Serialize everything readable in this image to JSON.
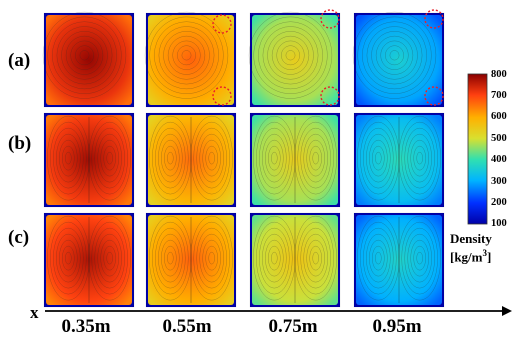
{
  "rows": [
    {
      "label": "(a)",
      "panels": [
        {
          "density": 720,
          "pattern": "single-vortex"
        },
        {
          "density": 600,
          "pattern": "single-vortex"
        },
        {
          "density": 470,
          "pattern": "single-vortex"
        },
        {
          "density": 290,
          "pattern": "single-vortex"
        }
      ]
    },
    {
      "label": "(b)",
      "panels": [
        {
          "density": 710,
          "pattern": "twin-vortex"
        },
        {
          "density": 590,
          "pattern": "twin-vortex"
        },
        {
          "density": 470,
          "pattern": "twin-vortex"
        },
        {
          "density": 320,
          "pattern": "twin-vortex"
        }
      ]
    },
    {
      "label": "(c)",
      "panels": [
        {
          "density": 700,
          "pattern": "twin-vortex"
        },
        {
          "density": 600,
          "pattern": "twin-vortex"
        },
        {
          "density": 490,
          "pattern": "twin-vortex"
        },
        {
          "density": 300,
          "pattern": "twin-vortex"
        }
      ]
    }
  ],
  "columns": [
    "0.35m",
    "0.55m",
    "0.75m",
    "0.95m"
  ],
  "axis_label": "x",
  "colorbar": {
    "title_line1": "Density",
    "title_line2": "[kg/m",
    "title_sup": "3",
    "title_end": "]",
    "min": 100,
    "max": 800,
    "ticks": [
      "800",
      "700",
      "600",
      "500",
      "400",
      "300",
      "200",
      "100"
    ]
  },
  "highlight_color": "#e8202a"
}
